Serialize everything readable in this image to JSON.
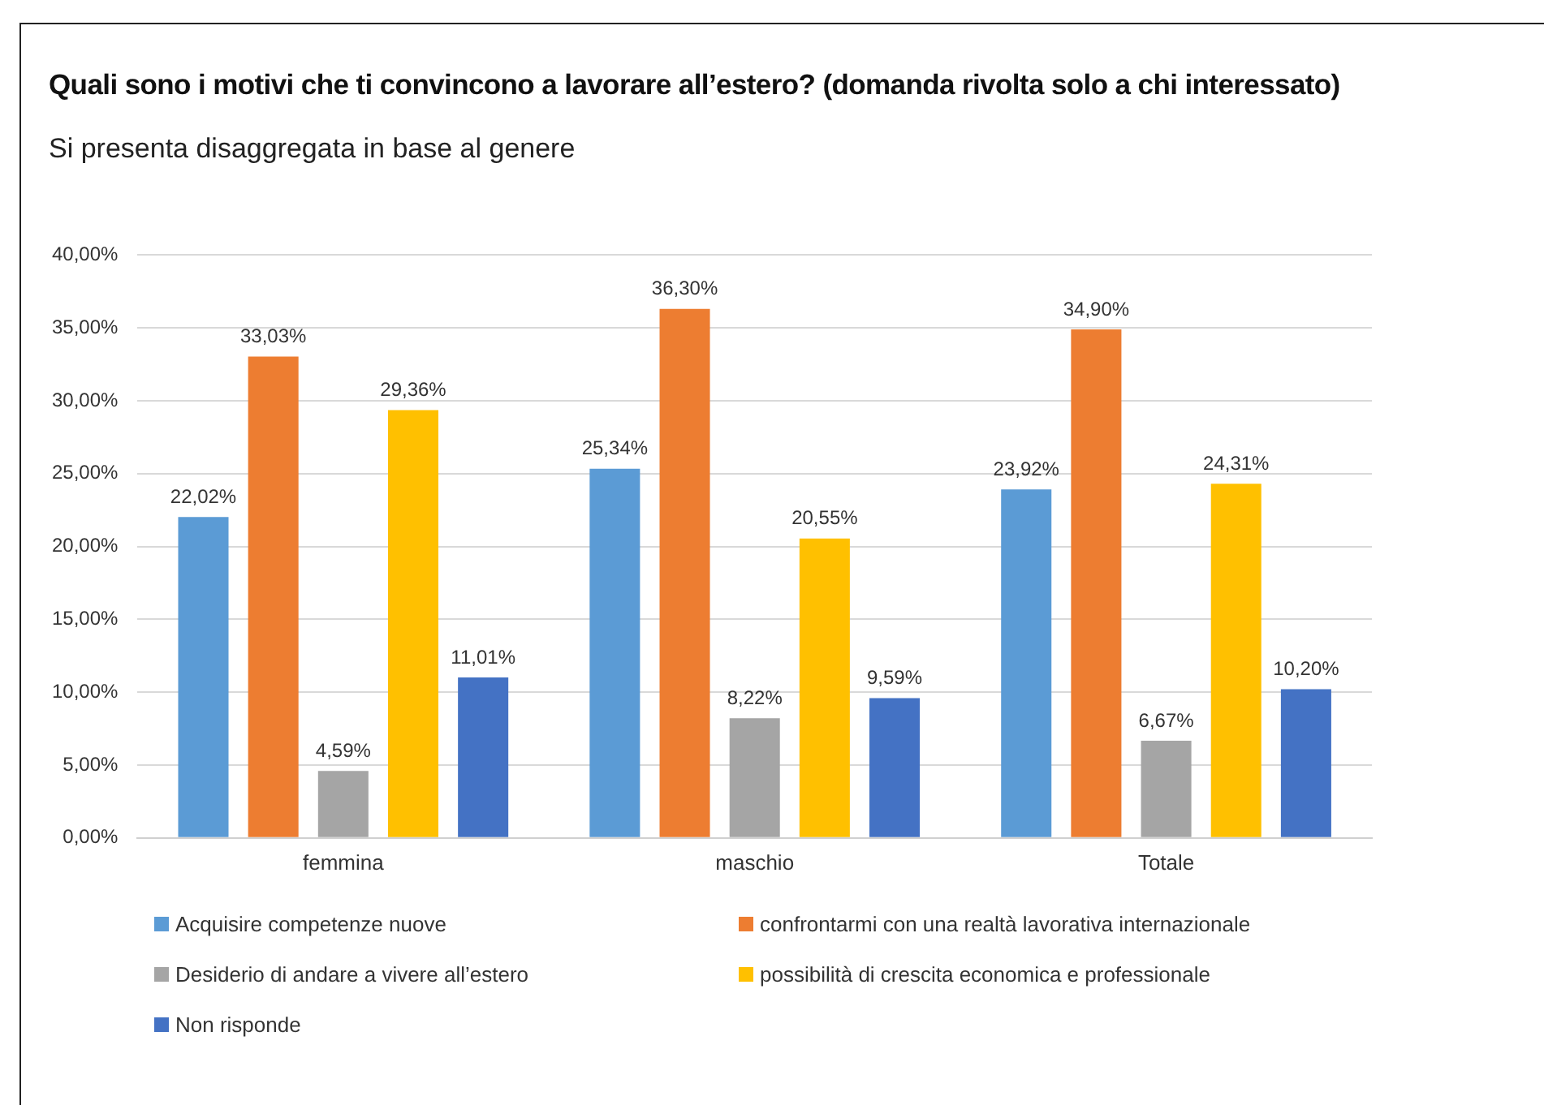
{
  "chart_data": {
    "type": "bar",
    "title": "Quali sono i motivi che ti convincono a lavorare all’estero? (domanda rivolta solo a chi interessato)",
    "subtitle": "Si presenta disaggregata in base al genere",
    "categories": [
      "femmina",
      "maschio",
      "Totale"
    ],
    "series": [
      {
        "name": "Acquisire competenze nuove",
        "color": "#5b9bd5",
        "values": [
          22.02,
          25.34,
          23.92
        ],
        "value_labels": [
          "22,02%",
          "25,34%",
          "23,92%"
        ]
      },
      {
        "name": "confrontarmi con una realtà lavorativa internazionale",
        "color": "#ed7d31",
        "values": [
          33.03,
          36.3,
          34.9
        ],
        "value_labels": [
          "33,03%",
          "36,30%",
          "34,90%"
        ]
      },
      {
        "name": "Desiderio di andare a vivere all’estero",
        "color": "#a5a5a5",
        "values": [
          4.59,
          8.22,
          6.67
        ],
        "value_labels": [
          "4,59%",
          "8,22%",
          "6,67%"
        ]
      },
      {
        "name": "possibilità di crescita economica e professionale",
        "color": "#ffc000",
        "values": [
          29.36,
          20.55,
          24.31
        ],
        "value_labels": [
          "29,36%",
          "20,55%",
          "24,31%"
        ]
      },
      {
        "name": "Non risponde",
        "color": "#4472c4",
        "values": [
          11.01,
          9.59,
          10.2
        ],
        "value_labels": [
          "11,01%",
          "9,59%",
          "10,20%"
        ]
      }
    ],
    "ylim": [
      0,
      40
    ],
    "yticks": [
      {
        "value": 0,
        "label": "0,00%"
      },
      {
        "value": 5,
        "label": "5,00%"
      },
      {
        "value": 10,
        "label": "10,00%"
      },
      {
        "value": 15,
        "label": "15,00%"
      },
      {
        "value": 20,
        "label": "20,00%"
      },
      {
        "value": 25,
        "label": "25,00%"
      },
      {
        "value": 30,
        "label": "30,00%"
      },
      {
        "value": 35,
        "label": "35,00%"
      },
      {
        "value": 40,
        "label": "40,00%"
      }
    ],
    "grid": "y",
    "legend": "bottom"
  }
}
